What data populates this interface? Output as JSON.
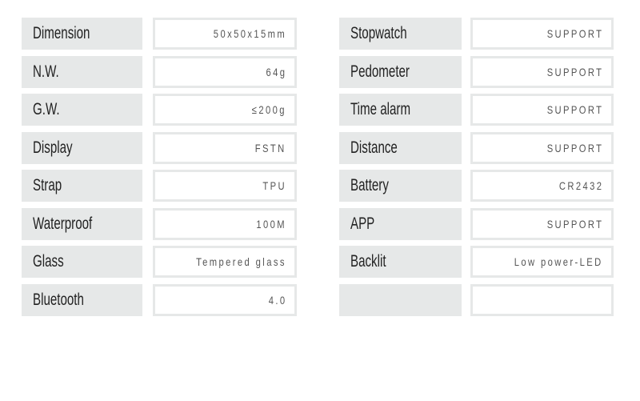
{
  "left": [
    {
      "label": "Dimension",
      "value": "50x50x15mm"
    },
    {
      "label": "N.W.",
      "value": "64g"
    },
    {
      "label": "G.W.",
      "value": "≤200g"
    },
    {
      "label": "Display",
      "value": "FSTN"
    },
    {
      "label": "Strap",
      "value": "TPU"
    },
    {
      "label": "Waterproof",
      "value": "100M"
    },
    {
      "label": "Glass",
      "value": "Tempered glass"
    },
    {
      "label": "Bluetooth",
      "value": "4.0"
    }
  ],
  "right": [
    {
      "label": "Stopwatch",
      "value": "SUPPORT"
    },
    {
      "label": "Pedometer",
      "value": "SUPPORT"
    },
    {
      "label": "Time alarm",
      "value": "SUPPORT"
    },
    {
      "label": "Distance",
      "value": "SUPPORT"
    },
    {
      "label": "Battery",
      "value": "CR2432"
    },
    {
      "label": "APP",
      "value": "SUPPORT"
    },
    {
      "label": "Backlit",
      "value": "Low power-LED"
    },
    {
      "label": "",
      "value": ""
    }
  ]
}
